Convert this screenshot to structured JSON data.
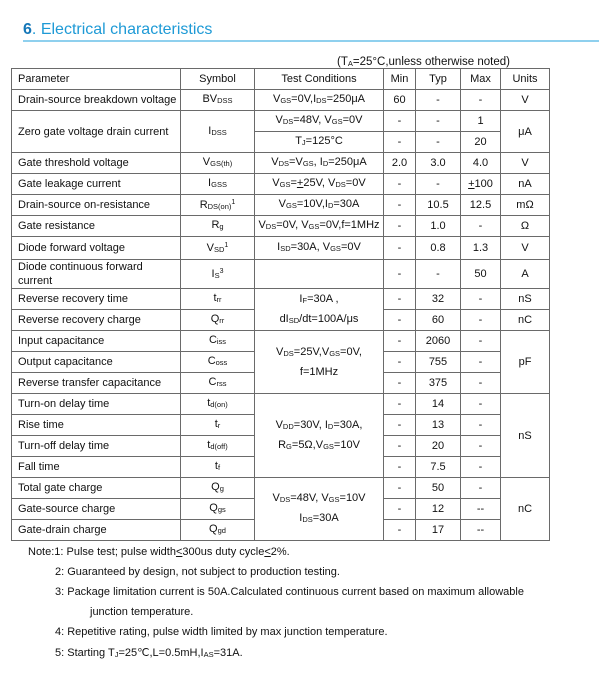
{
  "title": {
    "number": "6",
    "dot": ".",
    "text": "Electrical characteristics"
  },
  "condition_note": [
    {
      "t": "(T"
    },
    {
      "sub": "A"
    },
    {
      "t": "=25°C,unless otherwise noted)"
    }
  ],
  "table": {
    "headers": [
      "Parameter",
      "Symbol",
      "Test Conditions",
      "Min",
      "Typ",
      "Max",
      "Units"
    ],
    "rows": [
      [
        "Drain-source breakdown voltage",
        {
          "lines": [
            [
              "BV",
              {
                "sub": "DSS"
              }
            ]
          ]
        },
        {
          "lines": [
            [
              "V",
              {
                "sub": "GS"
              },
              "=0V,I",
              {
                "sub": "DS"
              },
              "=250μA"
            ]
          ]
        },
        "60",
        "-",
        "-",
        "V"
      ],
      [
        {
          "lines": [
            [
              "Zero gate voltage drain current"
            ]
          ],
          "span": 2
        },
        {
          "lines": [
            [
              "I",
              {
                "sub": "DSS"
              }
            ]
          ],
          "span": 2
        },
        {
          "lines": [
            [
              "V",
              {
                "sub": "DS"
              },
              "=48V, V",
              {
                "sub": "GS"
              },
              "=0V"
            ]
          ]
        },
        "-",
        "-",
        "1",
        {
          "lines": [
            [
              "μA"
            ]
          ],
          "span": 2
        }
      ],
      [
        {
          "lines": [
            [
              "T",
              {
                "sub": "J"
              },
              "=125°C"
            ]
          ]
        },
        "-",
        "-",
        "20"
      ],
      [
        "Gate threshold voltage",
        {
          "lines": [
            [
              "V",
              {
                "sub": "GS(th)"
              }
            ]
          ]
        },
        {
          "lines": [
            [
              "V",
              {
                "sub": "DS"
              },
              "=V",
              {
                "sub": "GS"
              },
              ", I",
              {
                "sub": "D"
              },
              "=250μA"
            ]
          ]
        },
        "2.0",
        "3.0",
        "4.0",
        "V"
      ],
      [
        "Gate leakage current",
        {
          "lines": [
            [
              "I",
              {
                "sub": "GSS"
              }
            ]
          ]
        },
        {
          "lines": [
            [
              "V",
              {
                "sub": "GS"
              },
              "=",
              {
                "u": "+"
              },
              "25V, V",
              {
                "sub": "DS"
              },
              "=0V"
            ]
          ]
        },
        "-",
        "-",
        {
          "lines": [
            [
              {
                "u": "+"
              },
              "100"
            ]
          ]
        },
        "nA"
      ],
      [
        "Drain-source on-resistance",
        {
          "lines": [
            [
              "R",
              {
                "sub": "DS(on)"
              },
              {
                "sup": "1"
              }
            ]
          ]
        },
        {
          "lines": [
            [
              "V",
              {
                "sub": "GS"
              },
              "=10V,I",
              {
                "sub": "D"
              },
              "=30A"
            ]
          ]
        },
        "-",
        "10.5",
        "12.5",
        "mΩ"
      ],
      [
        "Gate resistance",
        {
          "lines": [
            [
              "R",
              {
                "sub": "g"
              }
            ]
          ]
        },
        {
          "lines": [
            [
              "V",
              {
                "sub": "DS"
              },
              "=0V, V",
              {
                "sub": "GS"
              },
              "=0V,f=1MHz"
            ]
          ]
        },
        "-",
        "1.0",
        "-",
        "Ω"
      ],
      [
        "Diode forward voltage",
        {
          "lines": [
            [
              "V",
              {
                "sub": "SD"
              },
              {
                "sup": "1"
              }
            ]
          ]
        },
        {
          "lines": [
            [
              "I",
              {
                "sub": "SD"
              },
              "=30A, V",
              {
                "sub": "GS"
              },
              "=0V"
            ]
          ]
        },
        "-",
        "0.8",
        "1.3",
        "V"
      ],
      [
        "Diode continuous forward current",
        {
          "lines": [
            [
              "I",
              {
                "sub": "S"
              },
              {
                "sup": "3"
              }
            ]
          ]
        },
        "",
        "-",
        "-",
        "50",
        "A"
      ],
      [
        "Reverse recovery time",
        {
          "lines": [
            [
              "t",
              {
                "sub": "rr"
              }
            ]
          ]
        },
        {
          "lines": [
            [
              "I",
              {
                "sub": "F"
              },
              "=30A ,"
            ],
            [
              "dI",
              {
                "sub": "SD"
              },
              "/dt=100A/μs"
            ]
          ],
          "span": 2
        },
        "-",
        "32",
        "-",
        "nS"
      ],
      [
        "Reverse recovery charge",
        {
          "lines": [
            [
              "Q",
              {
                "sub": "rr"
              }
            ]
          ]
        },
        "-",
        "60",
        "-",
        "nC"
      ],
      [
        "Input capacitance",
        {
          "lines": [
            [
              "C",
              {
                "sub": "iss"
              }
            ]
          ]
        },
        {
          "lines": [
            [
              "V",
              {
                "sub": "DS"
              },
              "=25V,V",
              {
                "sub": "GS"
              },
              "=0V,"
            ],
            [
              "f=1MHz"
            ]
          ],
          "span": 3
        },
        "-",
        "2060",
        "-",
        {
          "lines": [
            [
              "pF"
            ]
          ],
          "span": 3
        }
      ],
      [
        "Output capacitance",
        {
          "lines": [
            [
              "C",
              {
                "sub": "oss"
              }
            ]
          ]
        },
        "-",
        "755",
        "-"
      ],
      [
        "Reverse transfer capacitance",
        {
          "lines": [
            [
              "C",
              {
                "sub": "rss"
              }
            ]
          ]
        },
        "-",
        "375",
        "-"
      ],
      [
        "Turn-on delay time",
        {
          "lines": [
            [
              "t",
              {
                "sub": "d(on)"
              }
            ]
          ]
        },
        {
          "lines": [
            [
              "V",
              {
                "sub": "DD"
              },
              "=30V, I",
              {
                "sub": "D"
              },
              "=30A,"
            ],
            [
              "R",
              {
                "sub": "G"
              },
              "=5Ω,V",
              {
                "sub": "GS"
              },
              "=10V"
            ]
          ],
          "span": 4
        },
        "-",
        "14",
        "-",
        {
          "lines": [
            [
              "nS"
            ]
          ],
          "span": 4
        }
      ],
      [
        "Rise time",
        {
          "lines": [
            [
              "t",
              {
                "sub": "r"
              }
            ]
          ]
        },
        "-",
        "13",
        "-"
      ],
      [
        "Turn-off delay time",
        {
          "lines": [
            [
              "t",
              {
                "sub": "d(off)"
              }
            ]
          ]
        },
        "-",
        "20",
        "-"
      ],
      [
        "Fall time",
        {
          "lines": [
            [
              "t",
              {
                "sub": "f"
              }
            ]
          ]
        },
        "-",
        "7.5",
        "-"
      ],
      [
        "Total gate charge",
        {
          "lines": [
            [
              "Q",
              {
                "sub": "g"
              }
            ]
          ]
        },
        {
          "lines": [
            [
              "V",
              {
                "sub": "DS"
              },
              "=48V, V",
              {
                "sub": "GS"
              },
              "=10V"
            ],
            [
              "I",
              {
                "sub": "DS"
              },
              "=30A"
            ]
          ],
          "span": 3
        },
        "-",
        "50",
        "-",
        {
          "lines": [
            [
              "nC"
            ]
          ],
          "span": 3
        }
      ],
      [
        "Gate-source charge",
        {
          "lines": [
            [
              "Q",
              {
                "sub": "gs"
              }
            ]
          ]
        },
        "-",
        "12",
        "--"
      ],
      [
        "Gate-drain charge",
        {
          "lines": [
            [
              "Q",
              {
                "sub": "gd"
              }
            ]
          ]
        },
        "-",
        "17",
        "--"
      ]
    ]
  },
  "notes": [
    [
      "Note:1: Pulse test; pulse width",
      {
        "u": "<"
      },
      "300us duty cycle",
      {
        "u": "<"
      },
      "2%."
    ],
    [
      "2: Guaranteed by design, not subject to production testing."
    ],
    [
      "3: Package limitation current is 50A.Calculated continuous current based on maximum allowable"
    ],
    [
      "junction temperature."
    ],
    [
      "4: Repetitive rating, pulse width limited by max junction temperature."
    ],
    [
      "5: Starting T",
      {
        "sub": "J"
      },
      "=25℃,L=0.5mH,I",
      {
        "sub": "AS"
      },
      "=31A."
    ]
  ]
}
